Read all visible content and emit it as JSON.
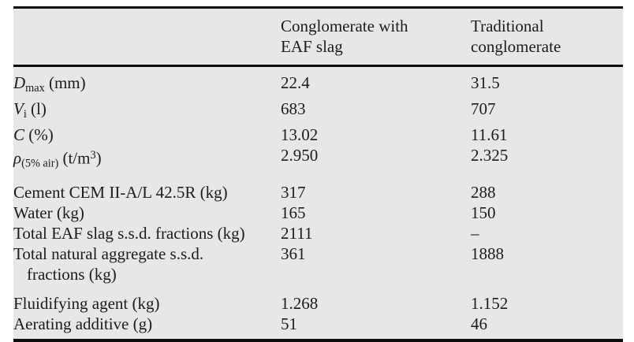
{
  "page": {
    "background": "#ffffff",
    "table_background": "#e7e7e5",
    "rule_color": "#0d0d0d",
    "text_color": "#1b1b22"
  },
  "table": {
    "header": {
      "col1": "",
      "col2": "Conglomerate with EAF slag",
      "col3": "Traditional conglomerate"
    },
    "rows": [
      {
        "gap": false,
        "label_plain": "D_max (mm)",
        "label": [
          {
            "t": "D",
            "s": "i"
          },
          {
            "t": "max",
            "s": "sub"
          },
          {
            "t": " (mm)",
            "s": "n"
          }
        ],
        "c1": "22.4",
        "c2": "31.5"
      },
      {
        "gap": false,
        "label_plain": "V_i (l)",
        "label": [
          {
            "t": "V",
            "s": "i"
          },
          {
            "t": "i",
            "s": "sub"
          },
          {
            "t": " (l)",
            "s": "n"
          }
        ],
        "c1": "683",
        "c2": "707"
      },
      {
        "gap": false,
        "label_plain": "C (%)",
        "label": [
          {
            "t": "C",
            "s": "i"
          },
          {
            "t": " (%)",
            "s": "n"
          }
        ],
        "c1": "13.02",
        "c2": "11.61"
      },
      {
        "gap": false,
        "label_plain": "rho_(5% air) (t/m^3)",
        "label": [
          {
            "t": "ρ",
            "s": "i"
          },
          {
            "t": "(5% air)",
            "s": "sub"
          },
          {
            "t": " (t/m",
            "s": "n"
          },
          {
            "t": "3",
            "s": "sup"
          },
          {
            "t": ")",
            "s": "n"
          }
        ],
        "c1": "2.950",
        "c2": "2.325"
      },
      {
        "gap": true,
        "label_plain": "Cement CEM II-A/L 42.5R (kg)",
        "label": [
          {
            "t": "Cement CEM II-A/L 42.5R (kg)",
            "s": "n"
          }
        ],
        "c1": "317",
        "c2": "288"
      },
      {
        "gap": false,
        "label_plain": "Water (kg)",
        "label": [
          {
            "t": "Water (kg)",
            "s": "n"
          }
        ],
        "c1": "165",
        "c2": "150"
      },
      {
        "gap": false,
        "label_plain": "Total EAF slag s.s.d. fractions (kg)",
        "label": [
          {
            "t": "Total EAF slag s.s.d. fractions (kg)",
            "s": "n"
          }
        ],
        "c1": "2111",
        "c2": "–"
      },
      {
        "gap": false,
        "label_plain": "Total natural aggregate s.s.d. fractions (kg)",
        "label": [
          {
            "t": "Total natural aggregate s.s.d.",
            "s": "n"
          },
          {
            "t": "fractions (kg)",
            "s": "br"
          }
        ],
        "c1": "361",
        "c2": "1888"
      },
      {
        "gap": true,
        "label_plain": "Fluidifying agent (kg)",
        "label": [
          {
            "t": "Fluidifying agent (kg)",
            "s": "n"
          }
        ],
        "c1": "1.268",
        "c2": "1.152"
      },
      {
        "gap": false,
        "label_plain": "Aerating additive (g)",
        "label": [
          {
            "t": "Aerating additive (g)",
            "s": "n"
          }
        ],
        "c1": "51",
        "c2": "46"
      }
    ]
  }
}
